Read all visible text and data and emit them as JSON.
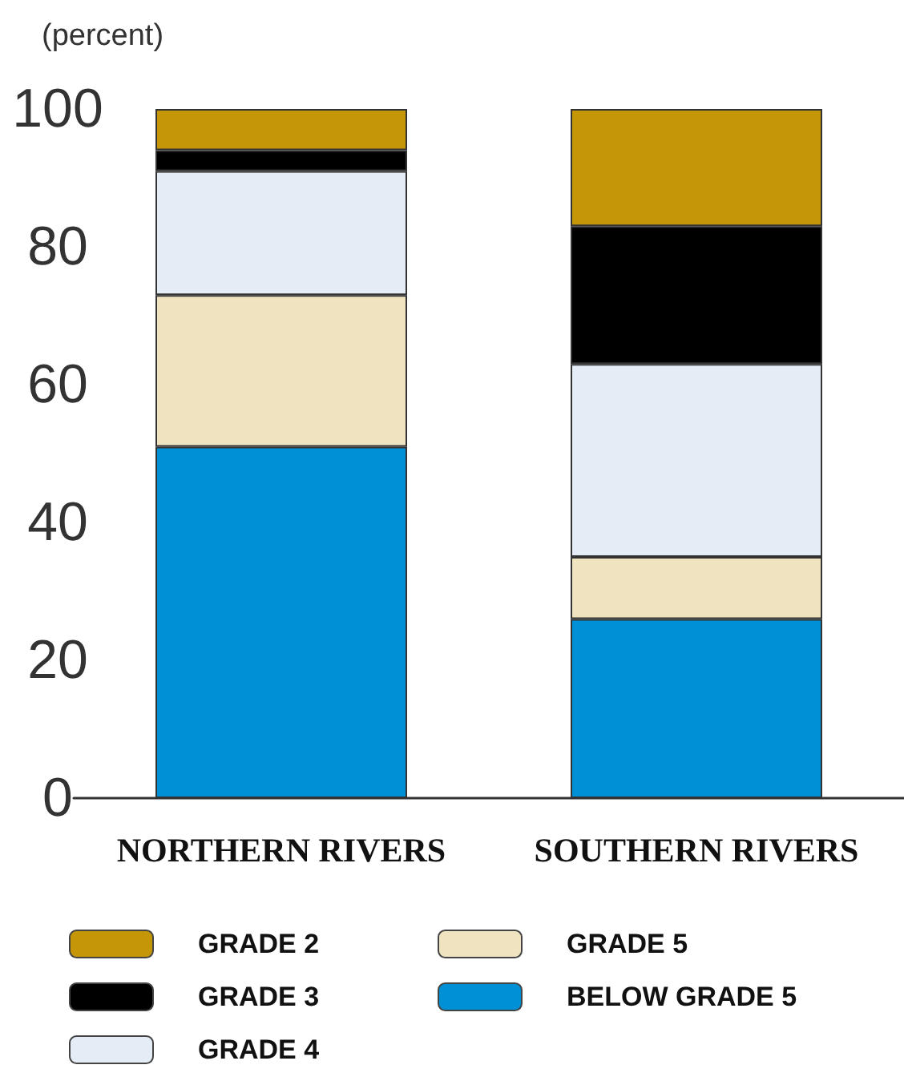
{
  "chart_data": {
    "type": "bar",
    "stacked": true,
    "ylabel": "(percent)",
    "categories": [
      "NORTHERN RIVERS",
      "SOUTHERN RIVERS"
    ],
    "series": [
      {
        "name": "BELOW GRADE 5",
        "color": "#0090d6",
        "values": [
          51,
          26
        ]
      },
      {
        "name": "GRADE 5",
        "color": "#efe3c0",
        "values": [
          22,
          9
        ]
      },
      {
        "name": "GRADE 4",
        "color": "#e4edf6",
        "values": [
          18,
          28
        ]
      },
      {
        "name": "GRADE 3",
        "color": "#000000",
        "values": [
          3,
          20
        ]
      },
      {
        "name": "GRADE 2",
        "color": "#c49608",
        "values": [
          6,
          17
        ]
      }
    ],
    "ylim": [
      0,
      100
    ],
    "yticks": [
      0,
      20,
      40,
      60,
      80,
      100
    ],
    "legend": "bottom"
  }
}
